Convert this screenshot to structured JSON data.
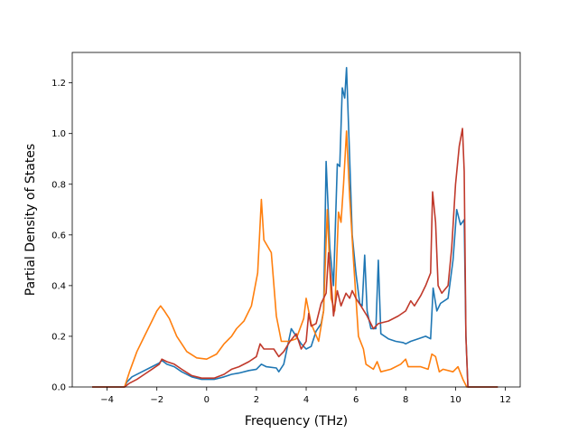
{
  "chart_data": {
    "type": "line",
    "xlabel": "Frequency (THz)",
    "ylabel": "Partial Density of States",
    "xlim": [
      -5.4,
      12.6
    ],
    "ylim": [
      0,
      1.32
    ],
    "xticks": [
      -4,
      -2,
      0,
      2,
      4,
      6,
      8,
      10,
      12
    ],
    "yticks": [
      0.0,
      0.2,
      0.4,
      0.6,
      0.8,
      1.0,
      1.2
    ],
    "xtick_labels": [
      "−4",
      "−2",
      "0",
      "2",
      "4",
      "6",
      "8",
      "10",
      "12"
    ],
    "ytick_labels": [
      "0.0",
      "0.2",
      "0.4",
      "0.6",
      "0.8",
      "1.0",
      "1.2"
    ],
    "grid": false,
    "series": [
      {
        "color": "#1f77b4",
        "points": [
          [
            -4.6,
            0
          ],
          [
            -3.3,
            0
          ],
          [
            -3.2,
            0.02
          ],
          [
            -3.0,
            0.04
          ],
          [
            -2.6,
            0.06
          ],
          [
            -2.2,
            0.08
          ],
          [
            -1.9,
            0.095
          ],
          [
            -1.8,
            0.105
          ],
          [
            -1.6,
            0.09
          ],
          [
            -1.3,
            0.08
          ],
          [
            -1.0,
            0.06
          ],
          [
            -0.6,
            0.04
          ],
          [
            -0.2,
            0.03
          ],
          [
            0.3,
            0.03
          ],
          [
            0.7,
            0.04
          ],
          [
            1.0,
            0.05
          ],
          [
            1.3,
            0.055
          ],
          [
            1.7,
            0.065
          ],
          [
            2.0,
            0.07
          ],
          [
            2.2,
            0.09
          ],
          [
            2.4,
            0.08
          ],
          [
            2.8,
            0.075
          ],
          [
            2.9,
            0.06
          ],
          [
            3.1,
            0.09
          ],
          [
            3.4,
            0.23
          ],
          [
            3.6,
            0.2
          ],
          [
            3.8,
            0.17
          ],
          [
            4.0,
            0.15
          ],
          [
            4.2,
            0.16
          ],
          [
            4.4,
            0.22
          ],
          [
            4.6,
            0.25
          ],
          [
            4.7,
            0.3
          ],
          [
            4.8,
            0.89
          ],
          [
            4.95,
            0.55
          ],
          [
            5.1,
            0.4
          ],
          [
            5.25,
            0.88
          ],
          [
            5.35,
            0.87
          ],
          [
            5.45,
            1.18
          ],
          [
            5.55,
            1.14
          ],
          [
            5.62,
            1.26
          ],
          [
            5.75,
            0.9
          ],
          [
            5.85,
            0.6
          ],
          [
            6.0,
            0.45
          ],
          [
            6.15,
            0.33
          ],
          [
            6.25,
            0.32
          ],
          [
            6.35,
            0.52
          ],
          [
            6.45,
            0.3
          ],
          [
            6.6,
            0.23
          ],
          [
            6.8,
            0.23
          ],
          [
            6.9,
            0.5
          ],
          [
            7.0,
            0.21
          ],
          [
            7.3,
            0.19
          ],
          [
            7.6,
            0.18
          ],
          [
            7.9,
            0.175
          ],
          [
            8.0,
            0.17
          ],
          [
            8.2,
            0.18
          ],
          [
            8.5,
            0.19
          ],
          [
            8.8,
            0.2
          ],
          [
            9.0,
            0.19
          ],
          [
            9.1,
            0.39
          ],
          [
            9.25,
            0.3
          ],
          [
            9.4,
            0.33
          ],
          [
            9.7,
            0.35
          ],
          [
            9.9,
            0.5
          ],
          [
            10.05,
            0.7
          ],
          [
            10.2,
            0.64
          ],
          [
            10.35,
            0.66
          ],
          [
            10.42,
            0.2
          ],
          [
            10.5,
            0
          ],
          [
            11.7,
            0
          ]
        ]
      },
      {
        "color": "#ff7f0e",
        "points": [
          [
            -4.6,
            0
          ],
          [
            -3.3,
            0
          ],
          [
            -3.1,
            0.06
          ],
          [
            -2.8,
            0.14
          ],
          [
            -2.5,
            0.2
          ],
          [
            -2.2,
            0.26
          ],
          [
            -2.0,
            0.3
          ],
          [
            -1.85,
            0.32
          ],
          [
            -1.7,
            0.3
          ],
          [
            -1.5,
            0.27
          ],
          [
            -1.2,
            0.2
          ],
          [
            -0.8,
            0.14
          ],
          [
            -0.4,
            0.115
          ],
          [
            0.0,
            0.11
          ],
          [
            0.4,
            0.13
          ],
          [
            0.7,
            0.17
          ],
          [
            1.0,
            0.2
          ],
          [
            1.2,
            0.23
          ],
          [
            1.5,
            0.26
          ],
          [
            1.8,
            0.32
          ],
          [
            2.05,
            0.45
          ],
          [
            2.2,
            0.74
          ],
          [
            2.3,
            0.58
          ],
          [
            2.6,
            0.53
          ],
          [
            2.8,
            0.28
          ],
          [
            3.0,
            0.18
          ],
          [
            3.3,
            0.18
          ],
          [
            3.6,
            0.19
          ],
          [
            3.9,
            0.27
          ],
          [
            4.0,
            0.35
          ],
          [
            4.2,
            0.25
          ],
          [
            4.5,
            0.18
          ],
          [
            4.7,
            0.3
          ],
          [
            4.85,
            0.7
          ],
          [
            5.0,
            0.35
          ],
          [
            5.15,
            0.3
          ],
          [
            5.3,
            0.69
          ],
          [
            5.4,
            0.65
          ],
          [
            5.5,
            0.8
          ],
          [
            5.62,
            1.01
          ],
          [
            5.75,
            0.75
          ],
          [
            5.9,
            0.5
          ],
          [
            6.1,
            0.2
          ],
          [
            6.3,
            0.15
          ],
          [
            6.4,
            0.09
          ],
          [
            6.7,
            0.07
          ],
          [
            6.85,
            0.1
          ],
          [
            7.0,
            0.06
          ],
          [
            7.4,
            0.07
          ],
          [
            7.8,
            0.09
          ],
          [
            8.0,
            0.11
          ],
          [
            8.1,
            0.08
          ],
          [
            8.6,
            0.08
          ],
          [
            8.9,
            0.07
          ],
          [
            9.05,
            0.13
          ],
          [
            9.2,
            0.12
          ],
          [
            9.35,
            0.06
          ],
          [
            9.5,
            0.07
          ],
          [
            9.9,
            0.06
          ],
          [
            10.1,
            0.08
          ],
          [
            10.3,
            0.03
          ],
          [
            10.45,
            0
          ],
          [
            11.7,
            0
          ]
        ]
      },
      {
        "color": "#c0392b",
        "points": [
          [
            -4.6,
            0
          ],
          [
            -3.3,
            0
          ],
          [
            -3.1,
            0.015
          ],
          [
            -2.8,
            0.03
          ],
          [
            -2.5,
            0.05
          ],
          [
            -2.2,
            0.07
          ],
          [
            -1.9,
            0.09
          ],
          [
            -1.8,
            0.11
          ],
          [
            -1.6,
            0.1
          ],
          [
            -1.3,
            0.09
          ],
          [
            -1.0,
            0.07
          ],
          [
            -0.6,
            0.045
          ],
          [
            -0.2,
            0.035
          ],
          [
            0.3,
            0.035
          ],
          [
            0.7,
            0.05
          ],
          [
            1.0,
            0.07
          ],
          [
            1.3,
            0.08
          ],
          [
            1.7,
            0.1
          ],
          [
            2.0,
            0.12
          ],
          [
            2.15,
            0.17
          ],
          [
            2.3,
            0.15
          ],
          [
            2.7,
            0.15
          ],
          [
            2.9,
            0.12
          ],
          [
            3.1,
            0.14
          ],
          [
            3.35,
            0.18
          ],
          [
            3.6,
            0.21
          ],
          [
            3.8,
            0.15
          ],
          [
            4.0,
            0.18
          ],
          [
            4.1,
            0.29
          ],
          [
            4.2,
            0.24
          ],
          [
            4.4,
            0.25
          ],
          [
            4.6,
            0.33
          ],
          [
            4.8,
            0.37
          ],
          [
            4.9,
            0.53
          ],
          [
            5.0,
            0.42
          ],
          [
            5.1,
            0.28
          ],
          [
            5.25,
            0.38
          ],
          [
            5.4,
            0.32
          ],
          [
            5.6,
            0.37
          ],
          [
            5.75,
            0.35
          ],
          [
            5.85,
            0.38
          ],
          [
            6.0,
            0.35
          ],
          [
            6.2,
            0.32
          ],
          [
            6.45,
            0.28
          ],
          [
            6.7,
            0.23
          ],
          [
            6.9,
            0.25
          ],
          [
            7.3,
            0.26
          ],
          [
            7.7,
            0.28
          ],
          [
            8.0,
            0.3
          ],
          [
            8.2,
            0.34
          ],
          [
            8.35,
            0.32
          ],
          [
            8.6,
            0.36
          ],
          [
            8.8,
            0.4
          ],
          [
            9.0,
            0.45
          ],
          [
            9.08,
            0.77
          ],
          [
            9.2,
            0.65
          ],
          [
            9.3,
            0.4
          ],
          [
            9.45,
            0.37
          ],
          [
            9.7,
            0.4
          ],
          [
            9.85,
            0.55
          ],
          [
            10.0,
            0.8
          ],
          [
            10.15,
            0.95
          ],
          [
            10.28,
            1.02
          ],
          [
            10.35,
            0.85
          ],
          [
            10.42,
            0.2
          ],
          [
            10.5,
            0
          ],
          [
            11.7,
            0
          ]
        ]
      }
    ]
  }
}
